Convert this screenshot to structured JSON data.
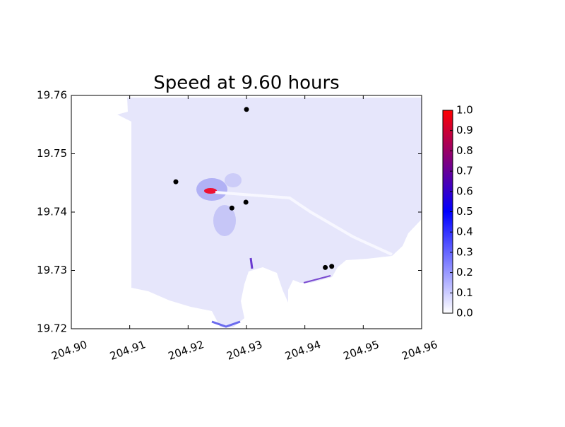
{
  "chart_data": {
    "type": "scatter",
    "title": "Speed at 9.60 hours",
    "series": [
      {
        "x": [
          204.93,
          204.9179,
          204.9275,
          204.9299,
          204.9435,
          204.9446
        ],
        "values": [
          19.7576,
          19.7452,
          19.7407,
          19.7417,
          19.7305,
          19.7307
        ],
        "color": "#000000"
      }
    ],
    "xlim": [
      204.9,
      204.96
    ],
    "ylim": [
      19.72,
      19.76
    ],
    "xticks": [
      {
        "value": 204.9,
        "label": "204.90"
      },
      204.91,
      204.92,
      204.93,
      204.94,
      204.95,
      204.96
    ],
    "yticks": [
      19.72,
      19.73,
      19.74,
      19.75,
      19.76
    ],
    "colorbar": {
      "lim": [
        0,
        1
      ],
      "colormap": [
        "#ffffff",
        "#0000ff",
        "#ff0000"
      ],
      "ticks": [
        {
          "value": 0,
          "label": "0.0"
        },
        0.1,
        0.2,
        0.3,
        0.4,
        0.5,
        0.6,
        0.7,
        0.8,
        0.9,
        {
          "value": 1,
          "label": "1.0"
        }
      ]
    }
  }
}
